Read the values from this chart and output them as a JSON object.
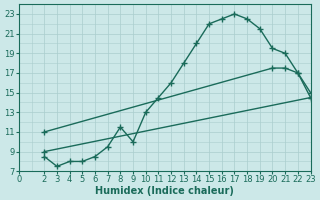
{
  "line1_x": [
    2,
    3,
    4,
    5,
    6,
    7,
    8,
    9,
    10,
    11,
    12,
    13,
    14,
    15,
    16,
    17,
    18,
    19,
    20,
    21,
    22,
    23
  ],
  "line1_y": [
    8.5,
    7.5,
    8,
    8,
    8.5,
    9.5,
    11.5,
    10,
    13,
    14.5,
    16,
    18,
    20,
    22,
    22.5,
    23,
    22.5,
    21.5,
    19.5,
    19,
    17,
    14.5
  ],
  "line2_x": [
    2,
    20,
    21,
    22,
    23
  ],
  "line2_y": [
    11,
    17.5,
    17.5,
    17,
    15
  ],
  "line3_x": [
    2,
    23
  ],
  "line3_y": [
    9,
    14.5
  ],
  "line_color": "#1a6b5a",
  "bg_color": "#cce8e8",
  "grid_color": "#aacece",
  "xlabel": "Humidex (Indice chaleur)",
  "xlim": [
    0,
    23
  ],
  "ylim": [
    7,
    24
  ],
  "yticks": [
    7,
    9,
    11,
    13,
    15,
    17,
    19,
    21,
    23
  ],
  "xticks": [
    0,
    2,
    3,
    4,
    5,
    6,
    7,
    8,
    9,
    10,
    11,
    12,
    13,
    14,
    15,
    16,
    17,
    18,
    19,
    20,
    21,
    22,
    23
  ],
  "marker": "+",
  "markersize": 4,
  "linewidth": 1.0,
  "fontsize_axis": 6,
  "fontsize_label": 7
}
